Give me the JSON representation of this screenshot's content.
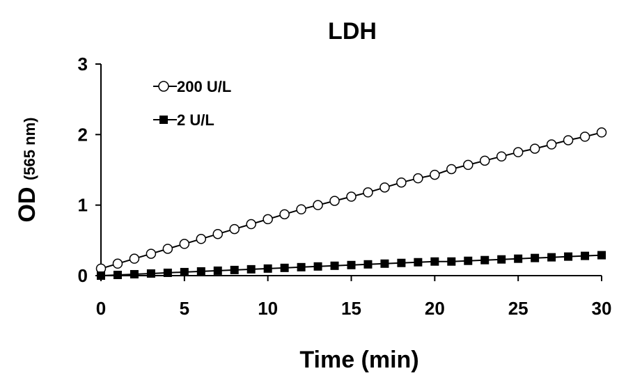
{
  "chart_data": {
    "type": "line",
    "title": "LDH",
    "xlabel": "Time (min)",
    "ylabel": "OD",
    "ylabel_unit": "(565 nm)",
    "xlim": [
      0,
      30
    ],
    "ylim": [
      0,
      3
    ],
    "xticks": [
      0,
      5,
      10,
      15,
      20,
      25,
      30
    ],
    "yticks": [
      0,
      1,
      2,
      3
    ],
    "grid": false,
    "legend_position": "top-left",
    "x": [
      0,
      1,
      2,
      3,
      4,
      5,
      6,
      7,
      8,
      9,
      10,
      11,
      12,
      13,
      14,
      15,
      16,
      17,
      18,
      19,
      20,
      21,
      22,
      23,
      24,
      25,
      26,
      27,
      28,
      29,
      30
    ],
    "series": [
      {
        "name": "200 U/L",
        "marker": "open-circle",
        "color": "#000000",
        "values": [
          0.1,
          0.17,
          0.24,
          0.31,
          0.38,
          0.45,
          0.52,
          0.59,
          0.66,
          0.73,
          0.8,
          0.87,
          0.94,
          1.0,
          1.06,
          1.12,
          1.18,
          1.25,
          1.32,
          1.38,
          1.43,
          1.51,
          1.57,
          1.63,
          1.69,
          1.75,
          1.8,
          1.86,
          1.92,
          1.97,
          2.03
        ]
      },
      {
        "name": "2 U/L",
        "marker": "filled-square",
        "color": "#000000",
        "values": [
          0.0,
          0.01,
          0.02,
          0.03,
          0.04,
          0.05,
          0.06,
          0.07,
          0.08,
          0.09,
          0.1,
          0.11,
          0.12,
          0.13,
          0.14,
          0.15,
          0.16,
          0.17,
          0.18,
          0.19,
          0.2,
          0.2,
          0.21,
          0.22,
          0.23,
          0.24,
          0.25,
          0.26,
          0.27,
          0.28,
          0.29
        ]
      }
    ]
  }
}
